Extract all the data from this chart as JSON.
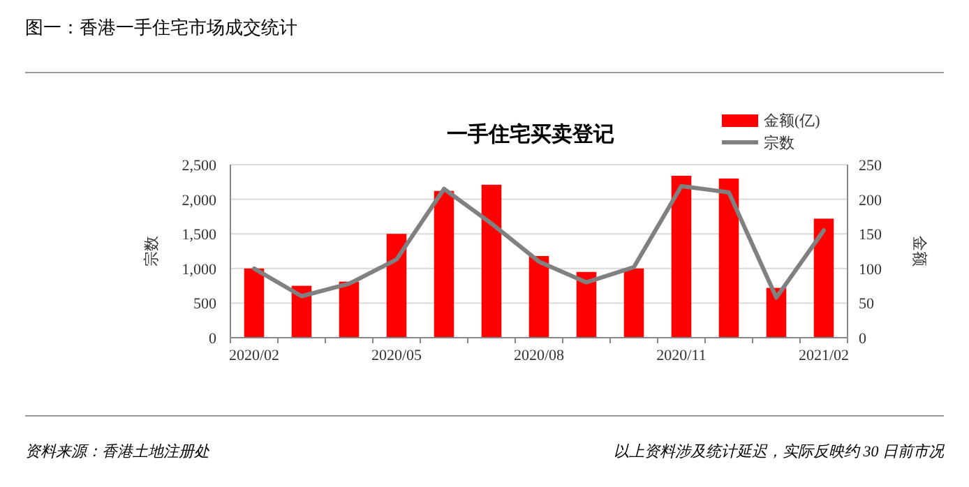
{
  "chart_data": {
    "type": "bar",
    "title": "图一：香港一手住宅市场成交统计",
    "subtitle": "一手住宅买卖登记",
    "ylabel": "宗数",
    "y2label": "金额",
    "annotations": [
      "资料来源：香港土地注册处",
      "以上资料涉及统计延迟，实际反映约 30 日前市况"
    ],
    "categories": [
      "2020/02",
      null,
      null,
      "2020/05",
      null,
      null,
      "2020/08",
      null,
      null,
      "2020/11",
      null,
      null,
      "2021/02"
    ],
    "series": [
      {
        "name": "金额(亿)",
        "axis": "y2",
        "color": "#ff0000",
        "values": [
          100,
          75,
          81,
          150,
          212,
          221,
          118,
          95,
          100,
          234,
          230,
          72,
          172
        ]
      },
      {
        "name": "宗数",
        "type": "line",
        "axis": "y",
        "color": "#808080",
        "values": [
          1000,
          600,
          780,
          1130,
          2150,
          1650,
          1100,
          800,
          1020,
          2190,
          2100,
          580,
          1550
        ]
      }
    ],
    "ylim": [
      0,
      2500
    ],
    "yticks": [
      {
        "value": 0,
        "label": "0"
      },
      {
        "value": 500,
        "label": "500"
      },
      {
        "value": 1000,
        "label": "1,000"
      },
      {
        "value": 1500,
        "label": "1,500"
      },
      {
        "value": 2000,
        "label": "2,000"
      },
      {
        "value": 2500,
        "label": "2,500"
      }
    ],
    "y2lim": [
      0,
      250
    ],
    "y2ticks": [
      0,
      50,
      100,
      150,
      200,
      250
    ],
    "grid": "y",
    "legend": "top right",
    "marker": "none",
    "line_style": "solid"
  }
}
